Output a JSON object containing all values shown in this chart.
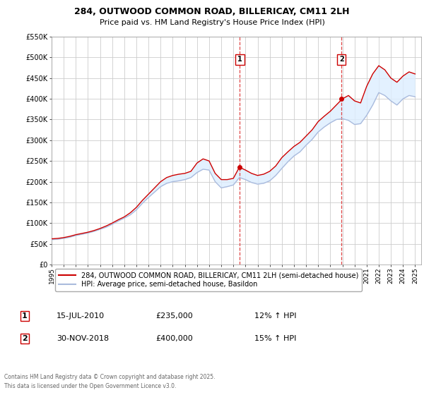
{
  "title": "284, OUTWOOD COMMON ROAD, BILLERICAY, CM11 2LH",
  "subtitle": "Price paid vs. HM Land Registry's House Price Index (HPI)",
  "bg_color": "#ffffff",
  "grid_color": "#cccccc",
  "red_line_color": "#cc0000",
  "blue_line_color": "#aabbdd",
  "fill_color": "#ddeeff",
  "marker1_x": 2010.54,
  "marker1_y": 235000,
  "marker2_x": 2018.92,
  "marker2_y": 400000,
  "vline1_x": 2010.54,
  "vline2_x": 2018.92,
  "ylim_min": 0,
  "ylim_max": 550000,
  "xlim_min": 1995,
  "xlim_max": 2025.5,
  "legend_label_red": "284, OUTWOOD COMMON ROAD, BILLERICAY, CM11 2LH (semi-detached house)",
  "legend_label_blue": "HPI: Average price, semi-detached house, Basildon",
  "sale1_label": "1",
  "sale1_date": "15-JUL-2010",
  "sale1_price": "£235,000",
  "sale1_hpi": "12% ↑ HPI",
  "sale2_label": "2",
  "sale2_date": "30-NOV-2018",
  "sale2_price": "£400,000",
  "sale2_hpi": "15% ↑ HPI",
  "footer": "Contains HM Land Registry data © Crown copyright and database right 2025.\nThis data is licensed under the Open Government Licence v3.0.",
  "yticks": [
    0,
    50000,
    100000,
    150000,
    200000,
    250000,
    300000,
    350000,
    400000,
    450000,
    500000,
    550000
  ],
  "ylabels": [
    "£0",
    "£50K",
    "£100K",
    "£150K",
    "£200K",
    "£250K",
    "£300K",
    "£350K",
    "£400K",
    "£450K",
    "£500K",
    "£550K"
  ],
  "red_x": [
    1995.0,
    1995.5,
    1996.0,
    1996.5,
    1997.0,
    1997.5,
    1998.0,
    1998.5,
    1999.0,
    1999.5,
    2000.0,
    2000.5,
    2001.0,
    2001.5,
    2002.0,
    2002.5,
    2003.0,
    2003.5,
    2004.0,
    2004.5,
    2005.0,
    2005.5,
    2006.0,
    2006.5,
    2007.0,
    2007.5,
    2008.0,
    2008.5,
    2009.0,
    2009.5,
    2010.0,
    2010.5,
    2011.0,
    2011.5,
    2012.0,
    2012.5,
    2013.0,
    2013.5,
    2014.0,
    2014.5,
    2015.0,
    2015.5,
    2016.0,
    2016.5,
    2017.0,
    2017.5,
    2018.0,
    2018.5,
    2019.0,
    2019.5,
    2020.0,
    2020.5,
    2021.0,
    2021.5,
    2022.0,
    2022.5,
    2023.0,
    2023.5,
    2024.0,
    2024.5,
    2025.0
  ],
  "red_y": [
    62000,
    63000,
    65000,
    68000,
    72000,
    75000,
    78000,
    82000,
    87000,
    93000,
    100000,
    108000,
    115000,
    125000,
    138000,
    155000,
    170000,
    185000,
    200000,
    210000,
    215000,
    218000,
    220000,
    225000,
    245000,
    255000,
    250000,
    220000,
    205000,
    205000,
    208000,
    235000,
    228000,
    220000,
    215000,
    218000,
    225000,
    238000,
    258000,
    272000,
    285000,
    295000,
    310000,
    325000,
    345000,
    358000,
    370000,
    385000,
    400000,
    408000,
    395000,
    390000,
    430000,
    460000,
    480000,
    470000,
    450000,
    440000,
    455000,
    465000,
    460000
  ],
  "blue_x": [
    1995.0,
    1995.5,
    1996.0,
    1996.5,
    1997.0,
    1997.5,
    1998.0,
    1998.5,
    1999.0,
    1999.5,
    2000.0,
    2000.5,
    2001.0,
    2001.5,
    2002.0,
    2002.5,
    2003.0,
    2003.5,
    2004.0,
    2004.5,
    2005.0,
    2005.5,
    2006.0,
    2006.5,
    2007.0,
    2007.5,
    2008.0,
    2008.5,
    2009.0,
    2009.5,
    2010.0,
    2010.5,
    2011.0,
    2011.5,
    2012.0,
    2012.5,
    2013.0,
    2013.5,
    2014.0,
    2014.5,
    2015.0,
    2015.5,
    2016.0,
    2016.5,
    2017.0,
    2017.5,
    2018.0,
    2018.5,
    2019.0,
    2019.5,
    2020.0,
    2020.5,
    2021.0,
    2021.5,
    2022.0,
    2022.5,
    2023.0,
    2023.5,
    2024.0,
    2024.5,
    2025.0
  ],
  "blue_y": [
    60000,
    61000,
    63000,
    66000,
    70000,
    73000,
    76000,
    80000,
    85000,
    90000,
    97000,
    105000,
    112000,
    120000,
    132000,
    148000,
    162000,
    175000,
    188000,
    196000,
    200000,
    202000,
    205000,
    210000,
    222000,
    230000,
    228000,
    200000,
    185000,
    188000,
    192000,
    210000,
    205000,
    198000,
    194000,
    196000,
    202000,
    215000,
    232000,
    248000,
    262000,
    272000,
    288000,
    302000,
    320000,
    332000,
    342000,
    350000,
    352000,
    348000,
    338000,
    340000,
    360000,
    385000,
    415000,
    408000,
    395000,
    385000,
    400000,
    408000,
    405000
  ]
}
